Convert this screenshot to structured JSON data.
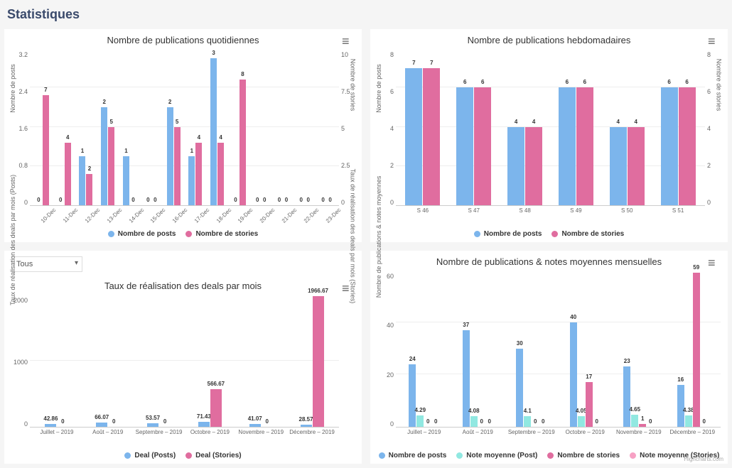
{
  "page_title": "Statistiques",
  "colors": {
    "posts": "#7cb5ec",
    "stories": "#e06d9f",
    "posts_alt": "#7cb5ec",
    "note_post": "#91e8e1",
    "note_story": "#f7a1c4",
    "grid": "#eeeeee",
    "axis_text": "#666666",
    "bg": "#ffffff"
  },
  "chart_daily": {
    "type": "bar",
    "title": "Nombre de publications quotidiennes",
    "y_left_label": "Nombre de posts",
    "y_right_label": "Nombre de stories",
    "y_left": {
      "min": 0,
      "max": 3.2,
      "ticks": [
        "3.2",
        "2.4",
        "1.6",
        "0.8",
        "0"
      ]
    },
    "y_right": {
      "min": 0,
      "max": 10,
      "ticks": [
        "10",
        "7.5",
        "5",
        "2.5",
        "0"
      ]
    },
    "categories": [
      "10-Dec",
      "11-Dec",
      "12-Dec",
      "13-Dec",
      "14-Dec",
      "15-Dec",
      "16-Dec",
      "17-Dec",
      "18-Dec",
      "19-Dec",
      "20-Dec",
      "21-Dec",
      "22-Dec",
      "23-Dec"
    ],
    "series": [
      {
        "name": "Nombre de posts",
        "color": "#7cb5ec",
        "axis": "left",
        "data": [
          0,
          0,
          1,
          2,
          1,
          0,
          2,
          1,
          3,
          0,
          0,
          0,
          0,
          0
        ]
      },
      {
        "name": "Nombre de stories",
        "color": "#e06d9f",
        "axis": "right",
        "data": [
          7,
          4,
          2,
          5,
          0,
          0,
          5,
          4,
          4,
          8,
          0,
          0,
          0,
          0
        ]
      }
    ],
    "legend": [
      {
        "label": "Nombre de posts",
        "color": "#7cb5ec"
      },
      {
        "label": "Nombre de stories",
        "color": "#e06d9f"
      }
    ]
  },
  "chart_weekly": {
    "type": "bar",
    "title": "Nombre de publications hebdomadaires",
    "y_left_label": "Nombre de posts",
    "y_right_label": "Nombre de stories",
    "y_left": {
      "min": 0,
      "max": 8,
      "ticks": [
        "8",
        "6",
        "4",
        "2",
        "0"
      ]
    },
    "y_right": {
      "min": 0,
      "max": 8,
      "ticks": [
        "8",
        "6",
        "4",
        "2",
        "0"
      ]
    },
    "categories": [
      "S 46",
      "S 47",
      "S 48",
      "S 49",
      "S 50",
      "S 51"
    ],
    "series": [
      {
        "name": "Nombre de posts",
        "color": "#7cb5ec",
        "axis": "left",
        "data": [
          7,
          6,
          4,
          6,
          4,
          6
        ]
      },
      {
        "name": "Nombre de stories",
        "color": "#e06d9f",
        "axis": "right",
        "data": [
          7,
          6,
          4,
          6,
          4,
          6
        ]
      }
    ],
    "legend": [
      {
        "label": "Nombre de posts",
        "color": "#7cb5ec"
      },
      {
        "label": "Nombre de stories",
        "color": "#e06d9f"
      }
    ]
  },
  "chart_deals": {
    "type": "bar",
    "title": "Taux de réalisation des deals par mois",
    "filter_label": "Tous",
    "y_left_label": "Taux de réalisation des deals par mois (Posts)",
    "y_right_label": "Taux de réalisation des deals par mois (Stories)",
    "y_left": {
      "min": 0,
      "max": 2000,
      "ticks": [
        "2000",
        "1000",
        "0"
      ]
    },
    "y_right": {
      "min": 0,
      "max": 2000,
      "ticks": [
        "",
        "",
        ""
      ]
    },
    "categories": [
      "Juillet – 2019",
      "Août – 2019",
      "Septembre – 2019",
      "Octobre – 2019",
      "Novembre – 2019",
      "Décembre – 2019"
    ],
    "series": [
      {
        "name": "Deal (Posts)",
        "color": "#7cb5ec",
        "axis": "left",
        "data": [
          42.86,
          66.07,
          53.57,
          71.43,
          41.07,
          28.57
        ]
      },
      {
        "name": "Deal (Stories)",
        "color": "#e06d9f",
        "axis": "right",
        "data": [
          0,
          0,
          0,
          566.67,
          0,
          1966.67
        ]
      }
    ],
    "legend": [
      {
        "label": "Deal (Posts)",
        "color": "#7cb5ec"
      },
      {
        "label": "Deal (Stories)",
        "color": "#e06d9f"
      }
    ]
  },
  "chart_monthly": {
    "type": "bar",
    "title": "Nombre de publications & notes moyennes mensuelles",
    "y_left_label": "Nombre de publications & notes moyennes",
    "y_left": {
      "min": 0,
      "max": 60,
      "ticks": [
        "60",
        "40",
        "20",
        "0"
      ]
    },
    "categories": [
      "Juillet – 2019",
      "Août – 2019",
      "Septembre – 2019",
      "Octobre – 2019",
      "Novembre – 2019",
      "Décembre – 2019"
    ],
    "series": [
      {
        "name": "Nombre de posts",
        "color": "#7cb5ec",
        "data": [
          24,
          37,
          30,
          40,
          23,
          16
        ]
      },
      {
        "name": "Note moyenne (Post)",
        "color": "#91e8e1",
        "data": [
          4.29,
          4.08,
          4.1,
          4.05,
          4.65,
          4.38
        ]
      },
      {
        "name": "Nombre de stories",
        "color": "#e06d9f",
        "data": [
          0,
          0,
          0,
          17,
          1,
          59
        ]
      },
      {
        "name": "Note moyenne (Stories)",
        "color": "#f7a1c4",
        "data": [
          0,
          0,
          0,
          0,
          0,
          0
        ]
      }
    ],
    "legend": [
      {
        "label": "Nombre de posts",
        "color": "#7cb5ec"
      },
      {
        "label": "Note moyenne (Post)",
        "color": "#91e8e1"
      },
      {
        "label": "Nombre de stories",
        "color": "#e06d9f"
      },
      {
        "label": "Note moyenne (Stories)",
        "color": "#f7a1c4"
      }
    ],
    "credit": "Highcharts.com"
  }
}
